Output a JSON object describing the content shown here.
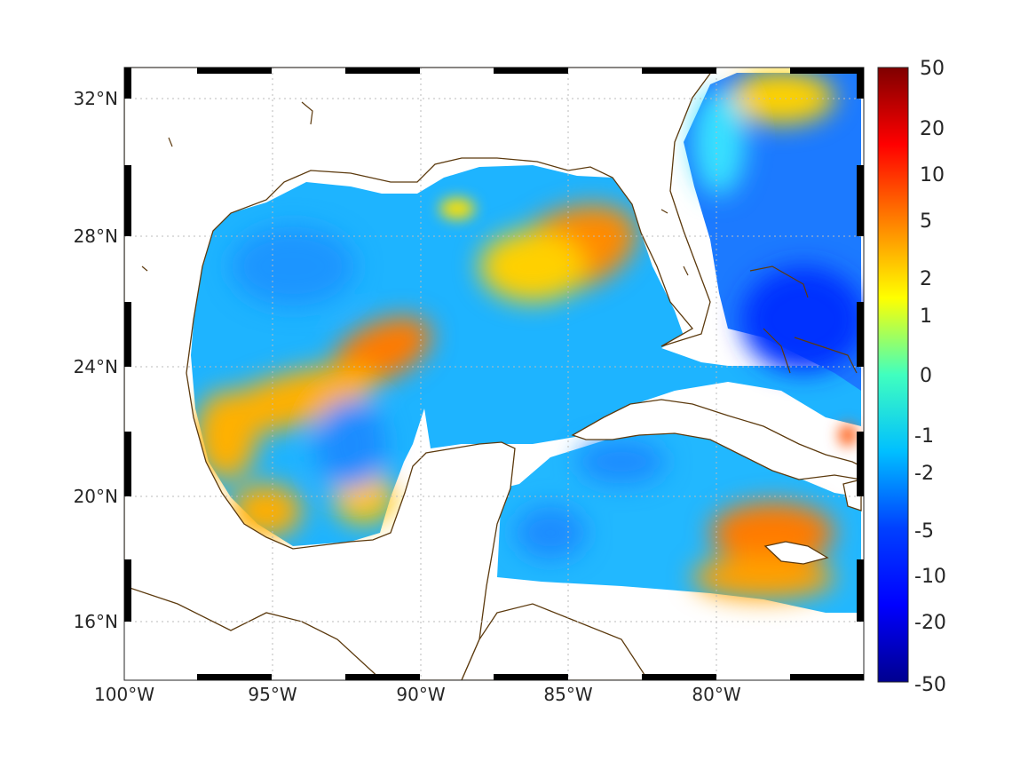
{
  "map": {
    "lon_range": [
      -100,
      -75
    ],
    "lat_range": [
      14.2,
      33
    ],
    "projection": "mercator",
    "grid": true,
    "grid_style": "dotted",
    "frame_style": "alternating black-white",
    "coastline_color": "#5c3a0e",
    "land_color": "#ffffff",
    "x_tick_labels": [
      "100°W",
      "95°W",
      "90°W",
      "85°W",
      "80°W"
    ],
    "x_tick_values": [
      -100,
      -95,
      -90,
      -85,
      -80
    ],
    "y_tick_labels": [
      "32°N",
      "28°N",
      "24°N",
      "20°N",
      "16°N"
    ],
    "y_tick_values": [
      32,
      28,
      24,
      20,
      16
    ]
  },
  "colorbar": {
    "colormap": "jet",
    "labels": [
      "50",
      "20",
      "10",
      "5",
      "2",
      "1",
      "0",
      "-1",
      "-2",
      "-5",
      "-10",
      "-20",
      "-50"
    ],
    "values": [
      50,
      20,
      10,
      5,
      2,
      1,
      0,
      -1,
      -2,
      -5,
      -10,
      -20,
      -50
    ],
    "placement": "right"
  },
  "field_features": [
    {
      "feature": "central Gulf positive anomaly",
      "level": 5,
      "color": "#ff7a00"
    },
    {
      "feature": "western Gulf positive band",
      "level": 3,
      "color": "#ffb000"
    },
    {
      "feature": "Campeche / Bay of Campeche positive",
      "level": 3,
      "color": "#ffb800"
    },
    {
      "feature": "south of Cuba / Jamaica positive",
      "level": 5,
      "color": "#ff7a00"
    },
    {
      "feature": "Atlantic east of Florida negative",
      "level": -10,
      "color": "#0a3cff"
    },
    {
      "feature": "general Gulf background",
      "level": -2,
      "color": "#1eb4ff"
    }
  ]
}
